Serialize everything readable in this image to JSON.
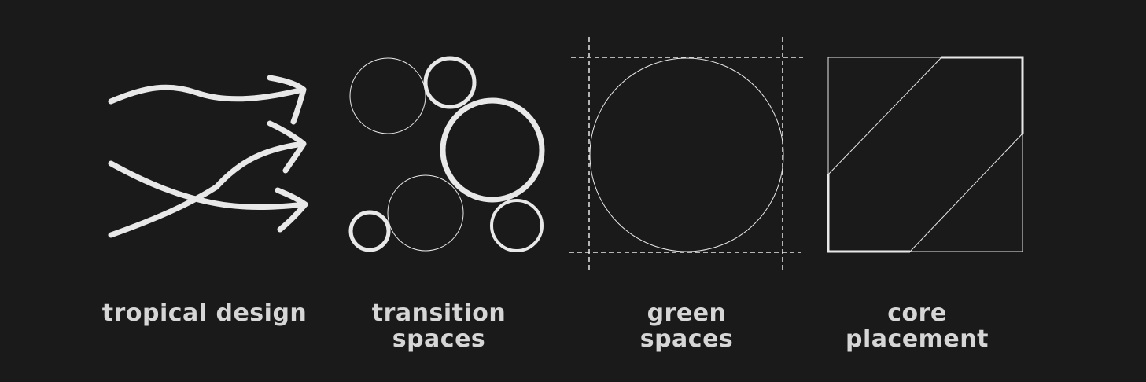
{
  "palette": {
    "background": "#1a1a1a",
    "stroke": "#e8e8e8",
    "label": "#d6d6d6"
  },
  "panels": [
    {
      "id": "tropical-design",
      "icon": "flowing-arrows-icon",
      "label_lines": [
        "tropical design"
      ]
    },
    {
      "id": "transition-spaces",
      "icon": "circles-cluster-icon",
      "label_lines": [
        "transition",
        "spaces"
      ]
    },
    {
      "id": "green-spaces",
      "icon": "circle-in-guides-icon",
      "label_lines": [
        "green",
        "spaces"
      ]
    },
    {
      "id": "core-placement",
      "icon": "diagonal-core-square-icon",
      "label_lines": [
        "core",
        "placement"
      ]
    }
  ]
}
